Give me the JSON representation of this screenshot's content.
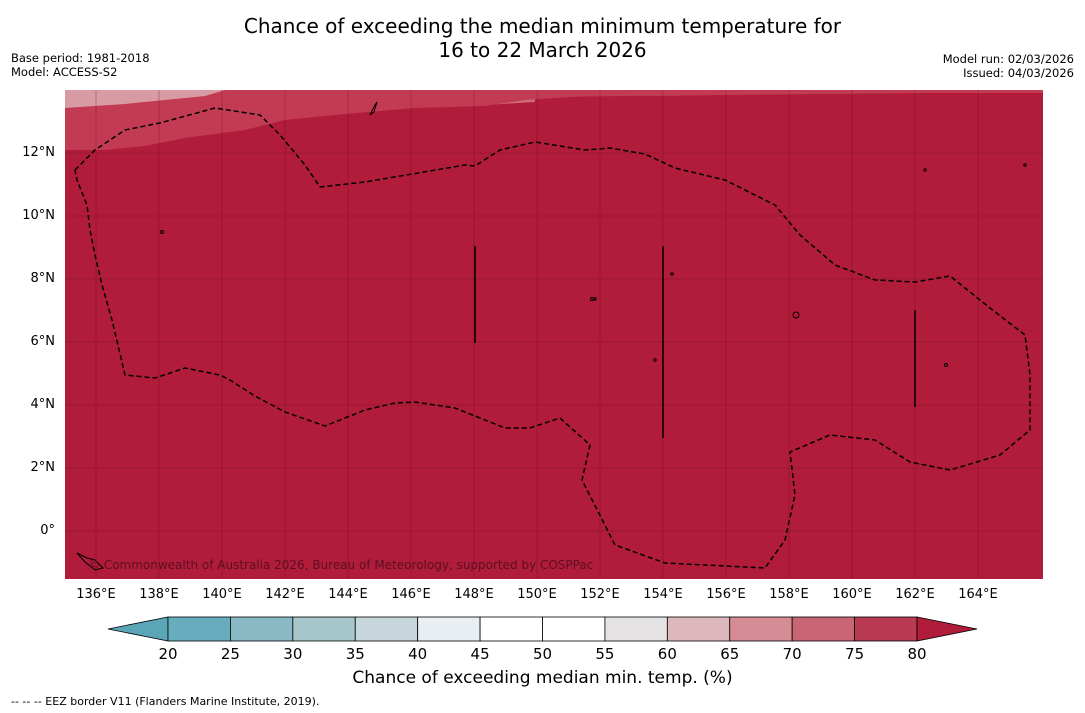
{
  "title": {
    "line1": "Chance of exceeding the median minimum temperature for",
    "line2": "16 to 22 March 2026"
  },
  "meta_left": {
    "base_period": "Base period: 1981-2018",
    "model": "Model: ACCESS-S2"
  },
  "meta_right": {
    "model_run": "Model run: 02/03/2026",
    "issued": "Issued: 04/03/2026"
  },
  "map": {
    "lat_labels": [
      "12°N",
      "10°N",
      "8°N",
      "6°N",
      "4°N",
      "2°N",
      "0°"
    ],
    "lon_labels": [
      "136°E",
      "138°E",
      "140°E",
      "142°E",
      "144°E",
      "146°E",
      "148°E",
      "150°E",
      "152°E",
      "154°E",
      "156°E",
      "158°E",
      "160°E",
      "162°E",
      "164°E"
    ],
    "copyright": "© Commonwealth of Australia 2026, Bureau of Meteorology, supported by COSPPac",
    "dominant_category": "80%+ chance",
    "colors": {
      "band_80": "#b01c3a",
      "band_75": "#c23b52",
      "band_70": "#cf6878",
      "band_65": "#d89aa3",
      "background": "#b01c3a"
    }
  },
  "colorbar": {
    "ticks": [
      "20",
      "25",
      "30",
      "35",
      "40",
      "45",
      "50",
      "55",
      "60",
      "65",
      "70",
      "75",
      "80"
    ],
    "colors": [
      "#5aa6b7",
      "#68adbd",
      "#89b9c5",
      "#a7c7cc",
      "#c8d7dc",
      "#e8eef1",
      "#ffffff",
      "#ffffff",
      "#e4e2e3",
      "#dcb7bb",
      "#d58c94",
      "#c96674",
      "#b83b53",
      "#b01c3a"
    ],
    "title": "Chance of exceeding median min. temp. (%)"
  },
  "footnote": "--  --  -- EEZ border V11 (Flanders Marine Institute, 2019)."
}
